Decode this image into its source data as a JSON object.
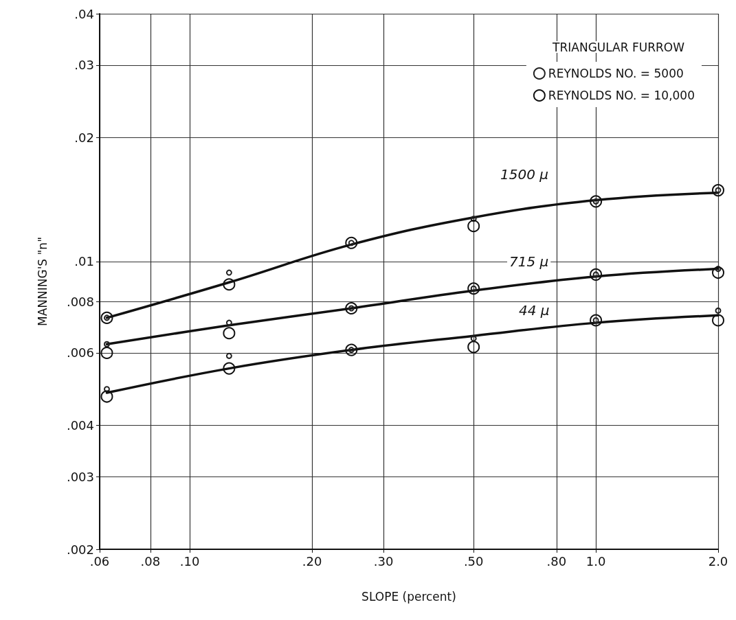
{
  "chart_data": {
    "type": "scatter",
    "xlabel": "SLOPE (percent)",
    "ylabel": "MANNING'S \"n\"",
    "legend_title": "TRIANGULAR FURROW",
    "legend": "top right",
    "grid": true,
    "log": "xy",
    "marker": "circle",
    "xlim": [
      0.06,
      2.0
    ],
    "xticks": [
      {
        "value": 0.06,
        "label": ".06"
      },
      {
        "value": 0.08,
        "label": ".08"
      },
      {
        "value": 0.1,
        "label": ".10"
      },
      {
        "value": 0.2,
        "label": ".20"
      },
      {
        "value": 0.3,
        "label": ".30"
      },
      {
        "value": 0.5,
        "label": ".50"
      },
      {
        "value": 0.8,
        "label": ".80"
      },
      {
        "value": 1.0,
        "label": "1.0"
      },
      {
        "value": 2.0,
        "label": "2.0"
      }
    ],
    "ylim": [
      0.002,
      0.04
    ],
    "yticks": [
      {
        "value": 0.002,
        "label": ".002"
      },
      {
        "value": 0.003,
        "label": ".003"
      },
      {
        "value": 0.004,
        "label": ".004"
      },
      {
        "value": 0.006,
        "label": ".006"
      },
      {
        "value": 0.008,
        "label": ".008"
      },
      {
        "value": 0.01,
        "label": ".01"
      },
      {
        "value": 0.02,
        "label": ".02"
      },
      {
        "value": 0.03,
        "label": ".03"
      },
      {
        "value": 0.04,
        "label": ".04"
      }
    ],
    "annotations": [
      "1500 μ",
      "715 μ",
      "44 μ"
    ],
    "series": [
      {
        "name": "REYNOLDS NO. = 5000",
        "color": "#222222",
        "x": [
          0.0625,
          0.125,
          0.25,
          0.5,
          1.0,
          2.0,
          0.0625,
          0.125,
          0.25,
          0.5,
          1.0,
          2.0,
          0.0625,
          0.125,
          0.25,
          0.5,
          1.0,
          2.0
        ],
        "values": [
          0.0073,
          0.0094,
          0.0111,
          0.0127,
          0.014,
          0.0149,
          0.0063,
          0.0071,
          0.0077,
          0.0086,
          0.0093,
          0.0096,
          0.0049,
          0.0059,
          0.0061,
          0.0065,
          0.0072,
          0.0076
        ]
      },
      {
        "name": "REYNOLDS NO. = 10,000",
        "color": "#111111",
        "x": [
          0.0625,
          0.125,
          0.25,
          0.5,
          1.0,
          2.0,
          0.0625,
          0.125,
          0.25,
          0.5,
          1.0,
          2.0,
          0.0625,
          0.125,
          0.25,
          0.5,
          1.0,
          2.0
        ],
        "values": [
          0.0073,
          0.0088,
          0.0111,
          0.0122,
          0.014,
          0.0149,
          0.006,
          0.0067,
          0.0077,
          0.0086,
          0.0093,
          0.0094,
          0.0047,
          0.0055,
          0.0061,
          0.0062,
          0.0072,
          0.0072
        ]
      },
      {
        "type": "line",
        "color": "#111111",
        "marker": "none",
        "x": [
          0.0625,
          0.125,
          0.25,
          0.5,
          1.0,
          2.0
        ],
        "values": [
          0.0073,
          0.0089,
          0.011,
          0.0128,
          0.0141,
          0.0147
        ]
      },
      {
        "type": "line",
        "color": "#111111",
        "marker": "none",
        "x": [
          0.0625,
          0.125,
          0.25,
          0.5,
          1.0,
          2.0
        ],
        "values": [
          0.0063,
          0.007,
          0.0077,
          0.0085,
          0.0092,
          0.0096
        ]
      },
      {
        "type": "line",
        "color": "#111111",
        "marker": "none",
        "x": [
          0.0625,
          0.125,
          0.25,
          0.5,
          1.0,
          2.0
        ],
        "values": [
          0.0048,
          0.0055,
          0.0061,
          0.0066,
          0.0071,
          0.0074
        ]
      }
    ]
  }
}
